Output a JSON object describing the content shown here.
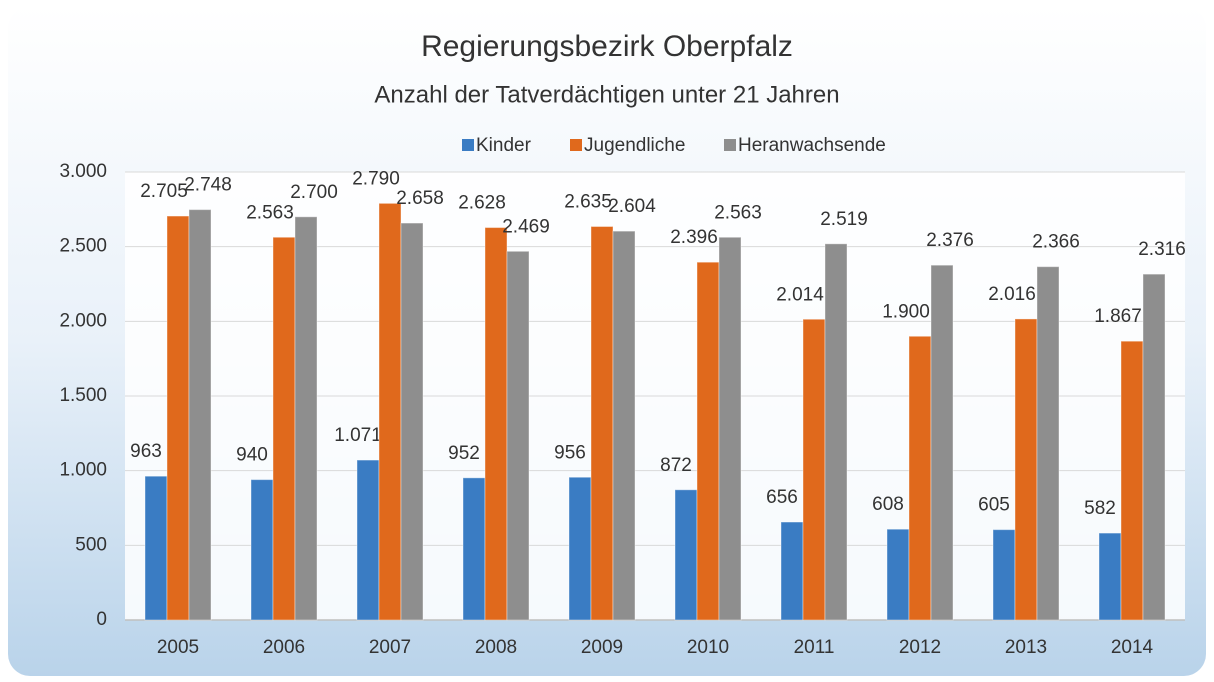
{
  "chart_data": {
    "type": "bar",
    "title": "Regierungsbezirk Oberpfalz",
    "subtitle": "Anzahl der Tatverdächtigen unter 21 Jahren",
    "categories": [
      "2005",
      "2006",
      "2007",
      "2008",
      "2009",
      "2010",
      "2011",
      "2012",
      "2013",
      "2014"
    ],
    "series": [
      {
        "name": "Kinder",
        "color": "#3a7cc3",
        "values": [
          963,
          940,
          1071,
          952,
          956,
          872,
          656,
          608,
          605,
          582
        ],
        "value_labels": [
          "963",
          "940",
          "1.071",
          "952",
          "956",
          "872",
          "656",
          "608",
          "605",
          "582"
        ]
      },
      {
        "name": "Jugendliche",
        "color": "#e0691c",
        "values": [
          2705,
          2563,
          2790,
          2628,
          2635,
          2396,
          2014,
          1900,
          2016,
          1867
        ],
        "value_labels": [
          "2.705",
          "2.563",
          "2.790",
          "2.628",
          "2.635",
          "2.396",
          "2.014",
          "1.900",
          "2.016",
          "1.867"
        ]
      },
      {
        "name": "Heranwachsende",
        "color": "#8e8e8e",
        "values": [
          2748,
          2700,
          2658,
          2469,
          2604,
          2563,
          2519,
          2376,
          2366,
          2316
        ],
        "value_labels": [
          "2.748",
          "2.700",
          "2.658",
          "2.469",
          "2.604",
          "2.563",
          "2.519",
          "2.376",
          "2.366",
          "2.316"
        ]
      }
    ],
    "ylim": [
      0,
      3000
    ],
    "yticks": [
      0,
      500,
      {
        "value": 1000,
        "label": "1.000"
      },
      {
        "value": 1500,
        "label": "1.500"
      },
      {
        "value": 2000,
        "label": "2.000"
      },
      {
        "value": 2500,
        "label": "2.500"
      },
      {
        "value": 3000,
        "label": "3.000"
      }
    ],
    "grid": true,
    "legend": "top"
  }
}
